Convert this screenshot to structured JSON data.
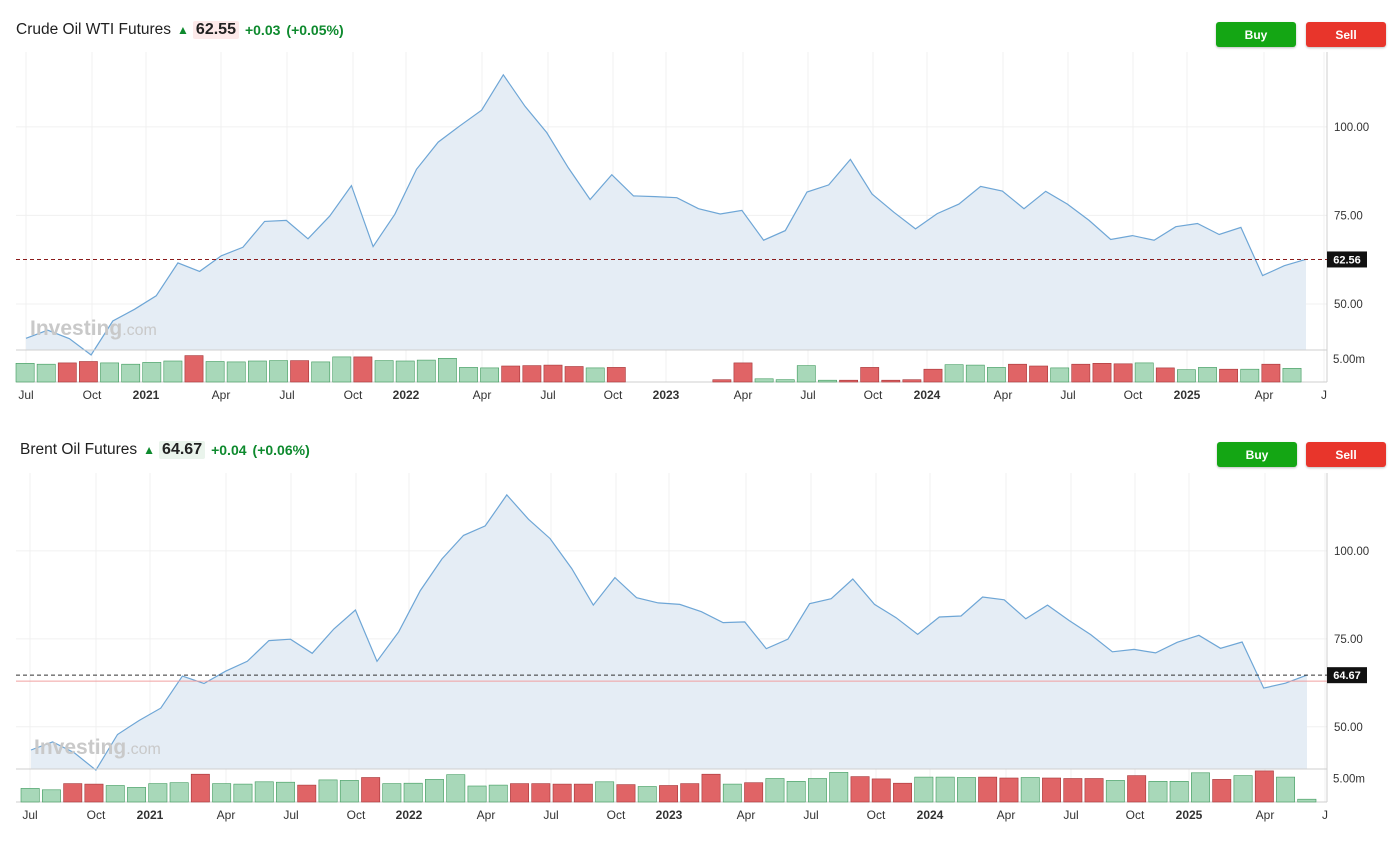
{
  "colors": {
    "line": "#6ea6d6",
    "area": "#e5edf5",
    "vol_up": "#a8d8b9",
    "vol_up_border": "#3e9a5c",
    "vol_down": "#e06466",
    "vol_down_border": "#a53538",
    "buy": "#14a614",
    "sell": "#e8352b",
    "grid": "#f0f0f0"
  },
  "icons": {
    "up_arrow": "up-arrow-icon"
  },
  "charts": [
    {
      "name": "Crude Oil WTI Futures",
      "price": "62.55",
      "change": "+0.03",
      "change_pct": "(+0.05%)",
      "buy_label": "Buy",
      "sell_label": "Sell",
      "price_tag": "62.56",
      "watermark": {
        "brand": "Investing",
        "suffix": ".com"
      },
      "volume_tick": "5.00m"
    },
    {
      "name": "Brent Oil Futures",
      "price": "64.67",
      "change": "+0.04",
      "change_pct": "(+0.06%)",
      "buy_label": "Buy",
      "sell_label": "Sell",
      "price_tag": "64.67",
      "watermark": {
        "brand": "Investing",
        "suffix": ".com"
      },
      "volume_tick": "5.00m"
    }
  ],
  "chart_data": [
    {
      "type": "area",
      "title": "Crude Oil WTI Futures",
      "x_tick_labels": [
        "Jul",
        "Oct",
        "2021",
        "Apr",
        "Jul",
        "Oct",
        "2022",
        "Apr",
        "Jul",
        "Oct",
        "2023",
        "Apr",
        "Jul",
        "Oct",
        "2024",
        "Apr",
        "Jul",
        "Oct",
        "2025",
        "Apr",
        "J"
      ],
      "y_tick_labels": [
        "100.00",
        "75.00",
        "50.00"
      ],
      "ylim": [
        37,
        120
      ],
      "grid": true,
      "current_price_line": 62.56,
      "series": [
        {
          "name": "",
          "values": [
            40.3,
            42.6,
            40.2,
            35.6,
            45.2,
            48.5,
            52.3,
            61.6,
            59.2,
            63.6,
            66.0,
            73.3,
            73.6,
            68.4,
            74.8,
            83.4,
            66.2,
            75.3,
            88.0,
            95.7,
            100.3,
            104.7,
            114.7,
            105.8,
            98.4,
            88.4,
            79.5,
            86.5,
            80.5,
            80.3,
            80.0,
            76.9,
            75.4,
            76.4,
            68.0,
            70.7,
            81.6,
            83.6,
            90.8,
            81.0,
            75.9,
            71.2,
            75.5,
            78.2,
            83.2,
            81.9,
            76.9,
            81.8,
            78.2,
            73.6,
            68.2,
            69.3,
            68.0,
            71.8,
            72.7,
            69.6,
            71.6,
            58.0,
            60.8,
            62.6
          ]
        }
      ],
      "volume": {
        "unit": "m",
        "values": [
          4.1,
          3.9,
          4.2,
          4.5,
          4.2,
          3.9,
          4.3,
          4.6,
          5.8,
          4.5,
          4.4,
          4.6,
          4.7,
          4.7,
          4.4,
          5.5,
          5.5,
          4.7,
          4.6,
          4.8,
          5.2,
          3.2,
          3.1,
          3.5,
          3.6,
          3.7,
          3.4,
          3.1,
          3.2,
          0,
          0,
          0,
          0,
          0.5,
          4.2,
          0.7,
          0.5,
          3.6,
          0.4,
          0.4,
          3.2,
          0.4,
          0.5,
          2.8,
          3.8,
          3.7,
          3.2,
          3.9,
          3.5,
          3.1,
          3.9,
          4.1,
          4.0,
          4.2,
          3.1,
          2.7,
          3.2,
          2.8,
          2.8,
          3.9,
          3.0
        ],
        "up": [
          1,
          1,
          0,
          0,
          1,
          1,
          1,
          1,
          0,
          1,
          1,
          1,
          1,
          0,
          1,
          1,
          0,
          1,
          1,
          1,
          1,
          1,
          1,
          0,
          0,
          0,
          0,
          1,
          0,
          1,
          1,
          1,
          1,
          0,
          0,
          1,
          1,
          1,
          1,
          0,
          0,
          0,
          0,
          0,
          1,
          1,
          1,
          0,
          0,
          1,
          0,
          0,
          0,
          1,
          0,
          1,
          1,
          0,
          1,
          0,
          1
        ]
      }
    },
    {
      "type": "area",
      "title": "Brent Oil Futures",
      "x_tick_labels": [
        "Jul",
        "Oct",
        "2021",
        "Apr",
        "Jul",
        "Oct",
        "2022",
        "Apr",
        "Jul",
        "Oct",
        "2023",
        "Apr",
        "Jul",
        "Oct",
        "2024",
        "Apr",
        "Jul",
        "Oct",
        "2025",
        "Apr",
        "J"
      ],
      "y_tick_labels": [
        "100.00",
        "75.00",
        "50.00"
      ],
      "ylim": [
        38,
        121
      ],
      "grid": true,
      "current_price_line": 64.67,
      "series": [
        {
          "name": "",
          "values": [
            43.4,
            45.7,
            42.6,
            37.7,
            47.8,
            51.8,
            55.3,
            64.4,
            62.3,
            65.8,
            68.6,
            74.5,
            74.9,
            70.9,
            77.8,
            83.2,
            68.6,
            77.0,
            88.7,
            97.7,
            104.4,
            107.1,
            115.9,
            109.0,
            103.5,
            95.0,
            84.6,
            92.4,
            86.7,
            85.2,
            84.8,
            82.7,
            79.6,
            79.8,
            72.2,
            74.9,
            85.0,
            86.4,
            92.0,
            84.8,
            81.0,
            76.3,
            81.2,
            81.5,
            86.9,
            86.1,
            80.7,
            84.6,
            80.2,
            76.2,
            71.3,
            72.0,
            71.0,
            74.0,
            76.0,
            72.3,
            74.1,
            61.0,
            62.4,
            64.7
          ]
        }
      ],
      "volume": {
        "unit": "m",
        "values": [
          2.9,
          2.6,
          3.9,
          3.8,
          3.5,
          3.1,
          3.9,
          4.1,
          5.9,
          3.9,
          3.8,
          4.3,
          4.2,
          3.6,
          4.7,
          4.6,
          5.2,
          3.9,
          4.0,
          4.8,
          5.8,
          3.4,
          3.6,
          3.9,
          3.9,
          3.8,
          3.8,
          4.3,
          3.7,
          3.3,
          3.5,
          3.9,
          5.9,
          3.8,
          4.1,
          5.0,
          4.4,
          5.0,
          6.3,
          5.4,
          4.9,
          4.0,
          5.3,
          5.3,
          5.2,
          5.3,
          5.1,
          5.2,
          5.1,
          5.0,
          5.0,
          4.6,
          5.6,
          4.4,
          4.4,
          6.2,
          4.8,
          5.6,
          6.6,
          5.3,
          0.6
        ],
        "up": [
          1,
          1,
          0,
          0,
          1,
          1,
          1,
          1,
          0,
          1,
          1,
          1,
          1,
          0,
          1,
          1,
          0,
          1,
          1,
          1,
          1,
          1,
          1,
          0,
          0,
          0,
          0,
          1,
          0,
          1,
          0,
          0,
          0,
          1,
          0,
          1,
          1,
          1,
          1,
          0,
          0,
          0,
          1,
          1,
          1,
          0,
          0,
          1,
          0,
          0,
          0,
          1,
          0,
          1,
          1,
          1,
          0,
          1,
          0,
          1,
          1
        ]
      }
    }
  ]
}
